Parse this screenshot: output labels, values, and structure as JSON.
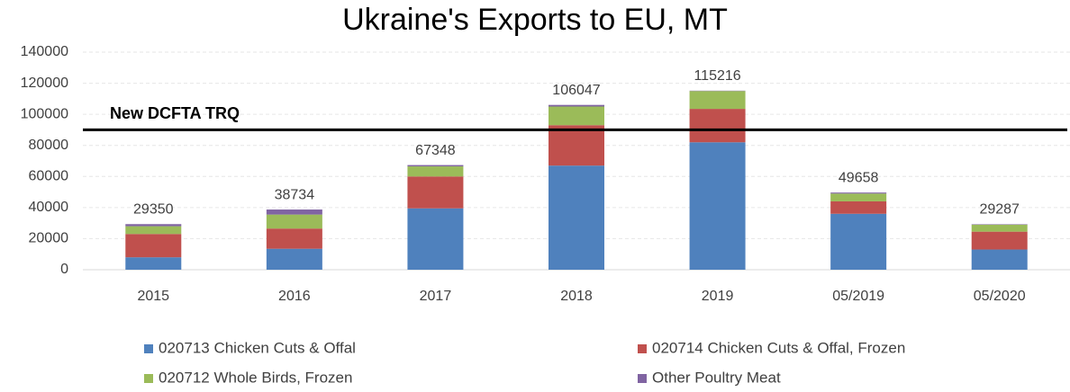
{
  "chart_data": {
    "type": "stacked_bar",
    "title": "Ukraine's Exports to EU, MT",
    "categories": [
      "2015",
      "2016",
      "2017",
      "2018",
      "2019",
      "05/2019",
      "05/2020"
    ],
    "series": [
      {
        "name": "020713 Chicken Cuts & Offal",
        "color": "#4f81bd",
        "values": [
          8000,
          13500,
          39500,
          67000,
          82000,
          36000,
          13000
        ]
      },
      {
        "name": "020714 Chicken Cuts & Offal, Frozen",
        "color": "#c0504d",
        "values": [
          15000,
          13000,
          20500,
          26000,
          21500,
          8000,
          11500
        ]
      },
      {
        "name": "020712 Whole Birds, Frozen",
        "color": "#9bbb59",
        "values": [
          5000,
          9000,
          6500,
          12000,
          11500,
          5000,
          4500
        ]
      },
      {
        "name": "Other Poultry Meat",
        "color": "#8064a2",
        "values": [
          1350,
          3234,
          848,
          1047,
          216,
          658,
          287
        ]
      }
    ],
    "totals": [
      29350,
      38734,
      67348,
      106047,
      115216,
      49658,
      29287
    ],
    "ylim": [
      0,
      140000
    ],
    "yticks": [
      0,
      20000,
      40000,
      60000,
      80000,
      100000,
      120000,
      140000
    ],
    "reference_line": {
      "label": "New DCFTA TRQ",
      "value": 90000,
      "color": "#000000"
    }
  }
}
